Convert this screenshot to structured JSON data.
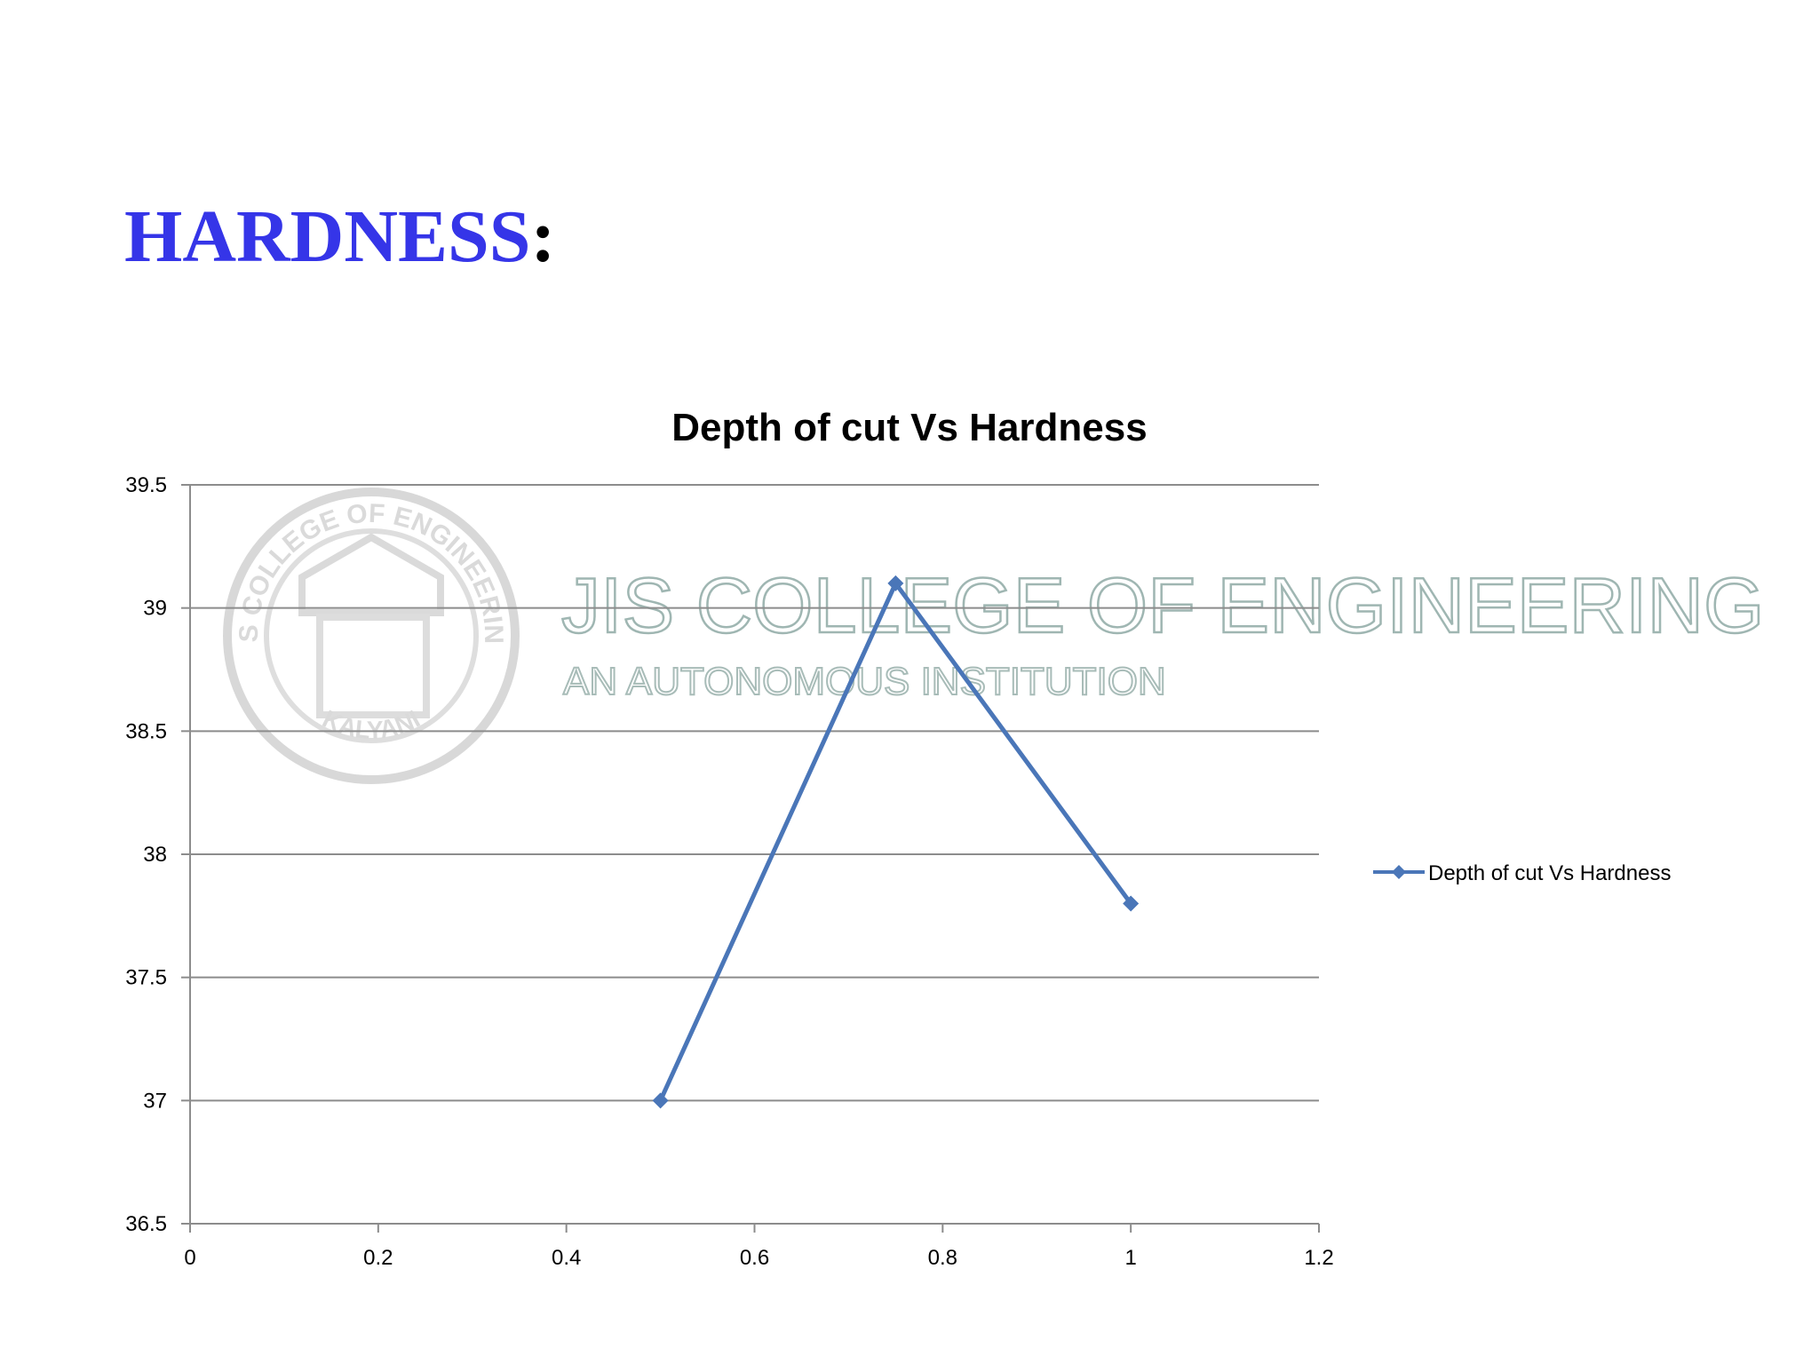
{
  "slide": {
    "title_word": "HARDNESS",
    "title_colon": ":"
  },
  "watermark": {
    "main": "JIS COLLEGE OF ENGINEERING",
    "sub": "AN AUTONOMOUS INSTITUTION",
    "seal_text_top": "JIS COLLEGE OF ENGINEERING",
    "seal_text_bottom": "KALYANI",
    "color": "#9fb6b2"
  },
  "chart_data": {
    "type": "scatter",
    "title": "Depth of cut Vs Hardness",
    "xlabel": "",
    "ylabel": "",
    "xlim": [
      0,
      1.2
    ],
    "ylim": [
      36.5,
      39.5
    ],
    "x_ticks": [
      "0",
      "0.2",
      "0.4",
      "0.6",
      "0.8",
      "1",
      "1.2"
    ],
    "y_ticks": [
      "39.5",
      "39",
      "38.5",
      "38",
      "37.5",
      "37",
      "36.5"
    ],
    "grid": "horizontal",
    "legend_position": "right",
    "marker": "diamond",
    "series": [
      {
        "name": "Depth of cut Vs Hardness",
        "color": "#4a76b8",
        "x": [
          0.5,
          0.75,
          1.0
        ],
        "y": [
          37.0,
          39.1,
          37.8
        ]
      }
    ]
  }
}
